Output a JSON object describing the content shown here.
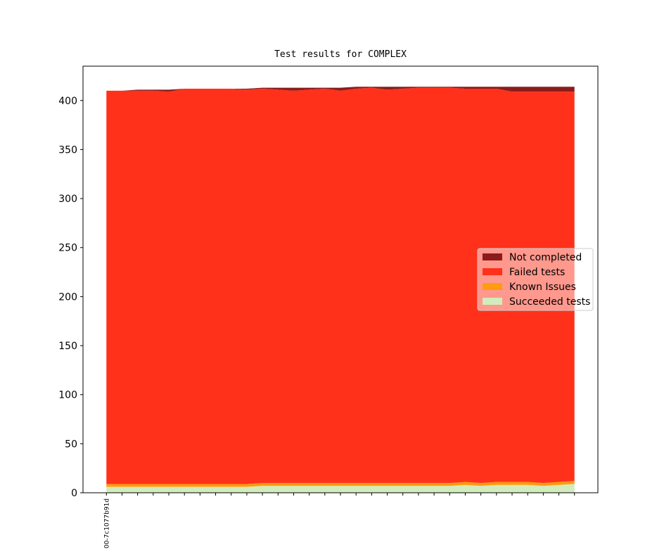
{
  "chart_data": {
    "type": "stacked_area",
    "title": "Test results for COMPLEX",
    "categories": [
      "00-7c1077b91d",
      null,
      null,
      null,
      null,
      null,
      null,
      null,
      null,
      null,
      null,
      null,
      null,
      null,
      null,
      null,
      null,
      null,
      null,
      null,
      null,
      null,
      null,
      null,
      null,
      null,
      null,
      null,
      null,
      null,
      null
    ],
    "series": [
      {
        "name": "Succeeded tests",
        "color": "#d2ecbd",
        "values": [
          6,
          6,
          6,
          6,
          6,
          6,
          6,
          6,
          6,
          6,
          7,
          7,
          7,
          7,
          7,
          7,
          7,
          7,
          7,
          7,
          7,
          7,
          7,
          8,
          7,
          8,
          8,
          8,
          7,
          8,
          9
        ]
      },
      {
        "name": "Known Issues",
        "color": "#ff9c0f",
        "values": [
          3,
          3,
          3,
          3,
          3,
          3,
          3,
          3,
          3,
          3,
          3,
          3,
          3,
          3,
          3,
          3,
          3,
          3,
          3,
          3,
          3,
          3,
          3,
          3,
          3,
          3,
          3,
          3,
          3,
          3,
          3
        ]
      },
      {
        "name": "Failed tests",
        "color": "#ff311b",
        "values": [
          401,
          401,
          401,
          401,
          400,
          403,
          403,
          403,
          403,
          402,
          402,
          401,
          400,
          401,
          402,
          400,
          402,
          403,
          401,
          402,
          403,
          403,
          403,
          401,
          402,
          401,
          398,
          398,
          399,
          398,
          397
        ]
      },
      {
        "name": "Not completed",
        "color": "#8c1c1c",
        "values": [
          0,
          0,
          1,
          1,
          2,
          0,
          0,
          0,
          0,
          1,
          1,
          2,
          3,
          2,
          1,
          3,
          2,
          1,
          3,
          2,
          1,
          1,
          1,
          2,
          2,
          2,
          5,
          5,
          5,
          5,
          5
        ]
      }
    ],
    "ylim": [
      0,
      435
    ],
    "yticks": [
      0,
      50,
      100,
      150,
      200,
      250,
      300,
      350,
      400
    ],
    "legend": "center right"
  }
}
